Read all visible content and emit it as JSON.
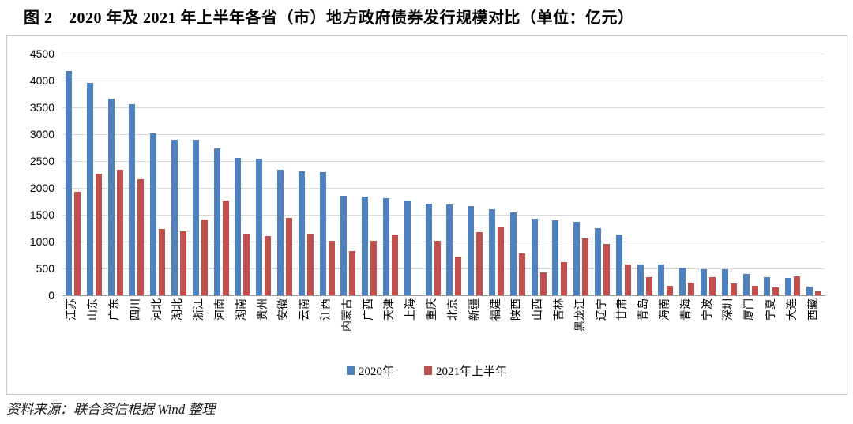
{
  "title": "图 2　2020 年及 2021 年上半年各省（市）地方政府债券发行规模对比（单位：亿元）",
  "source": "资料来源：联合资信根据 Wind 整理",
  "colors": {
    "series_2020": "#4F81BD",
    "series_2021": "#C0504D",
    "gridline": "#D9D9D9",
    "axis_line": "#9A9A9A",
    "frame_border": "#C9C9C9"
  },
  "legend": {
    "item_2020": "2020年",
    "item_2021": "2021年上半年"
  },
  "chart_data": {
    "type": "bar",
    "title": "2020 年及 2021 年上半年各省（市）地方政府债券发行规模对比",
    "unit": "亿元",
    "xlabel": "",
    "ylabel": "",
    "ylim": [
      0,
      4500
    ],
    "ytick_step": 500,
    "grid": true,
    "legend_position": "bottom",
    "categories": [
      "江苏",
      "山东",
      "广东",
      "四川",
      "河北",
      "湖北",
      "浙江",
      "河南",
      "湖南",
      "贵州",
      "安徽",
      "云南",
      "江西",
      "内蒙古",
      "广西",
      "天津",
      "上海",
      "重庆",
      "北京",
      "新疆",
      "福建",
      "陕西",
      "山西",
      "吉林",
      "黑龙江",
      "辽宁",
      "甘肃",
      "青岛",
      "海南",
      "青海",
      "宁波",
      "深圳",
      "厦门",
      "宁夏",
      "大连",
      "西藏"
    ],
    "series": [
      {
        "name": "2020年",
        "color": "#4F81BD",
        "values": [
          4180,
          3950,
          3660,
          3560,
          3010,
          2900,
          2890,
          2740,
          2560,
          2540,
          2340,
          2310,
          2300,
          1850,
          1840,
          1810,
          1760,
          1710,
          1690,
          1660,
          1610,
          1540,
          1420,
          1390,
          1370,
          1250,
          1130,
          575,
          570,
          520,
          490,
          487,
          390,
          340,
          330,
          165
        ]
      },
      {
        "name": "2021年上半年",
        "color": "#C0504D",
        "values": [
          1930,
          2270,
          2340,
          2160,
          1240,
          1190,
          1410,
          1770,
          1140,
          1110,
          1440,
          1140,
          1010,
          830,
          1020,
          1130,
          0,
          1020,
          720,
          1180,
          1270,
          780,
          430,
          620,
          1060,
          950,
          580,
          340,
          170,
          230,
          340,
          215,
          175,
          150,
          360,
          70
        ]
      }
    ]
  }
}
